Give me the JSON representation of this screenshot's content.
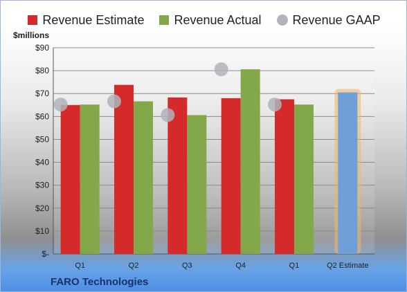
{
  "chart_data": {
    "type": "bar",
    "unit_label": "$millions",
    "categories": [
      "Q1",
      "Q2",
      "Q3",
      "Q4",
      "Q1",
      "Q2 Estimate"
    ],
    "series": [
      {
        "name": "Revenue Estimate",
        "color": "#d42a2a",
        "values": [
          65,
          73.8,
          68.3,
          68,
          67.5,
          null
        ]
      },
      {
        "name": "Revenue Actual",
        "color": "#82a84a",
        "values": [
          65.2,
          66.6,
          60.6,
          80.6,
          65.2,
          null
        ]
      },
      {
        "name": "Revenue GAAP",
        "color": "#b0b3bb",
        "marker": "dot",
        "values": [
          65.2,
          66.6,
          60.6,
          80.6,
          65.2,
          null
        ]
      }
    ],
    "projection": {
      "category": "Q2 Estimate",
      "value": 70.5,
      "color": "#6e9fd6",
      "glow": "#f3b56a"
    },
    "y_ticks": [
      "$-",
      "$10",
      "$20",
      "$30",
      "$40",
      "$50",
      "$60",
      "$70",
      "$80",
      "$90"
    ],
    "ylim": [
      0,
      90
    ],
    "grid": true,
    "legend_position": "top"
  },
  "footer": {
    "company": "FARO Technologies"
  }
}
